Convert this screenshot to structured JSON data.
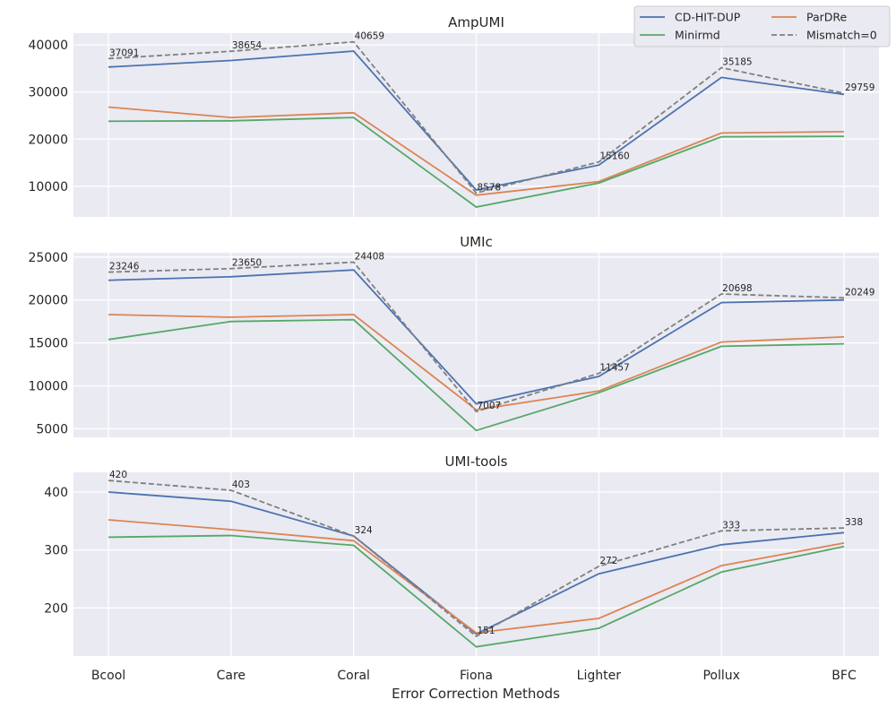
{
  "chart_data": {
    "type": "line",
    "xlabel": "Error Correction Methods",
    "categories": [
      "Bcool",
      "Care",
      "Coral",
      "Fiona",
      "Lighter",
      "Pollux",
      "BFC"
    ],
    "legend": {
      "placement": "top-right",
      "entries": [
        "CD-HIT-DUP",
        "ParDRe",
        "Minirmd",
        "Mismatch=0"
      ]
    },
    "colors": {
      "CD-HIT-DUP": "#4c72b0",
      "ParDRe": "#dd8452",
      "Minirmd": "#55a868",
      "Mismatch=0": "#808080"
    },
    "panels": [
      {
        "title": "AmpUMI",
        "ylim": [
          3500,
          42500
        ],
        "yticks": [
          10000,
          20000,
          30000,
          40000
        ],
        "series": [
          {
            "name": "CD-HIT-DUP",
            "values": [
              35300,
              36700,
              38700,
              9200,
              14500,
              33100,
              29500
            ]
          },
          {
            "name": "ParDRe",
            "values": [
              26800,
              24600,
              25600,
              8100,
              11000,
              21300,
              21600
            ]
          },
          {
            "name": "Minirmd",
            "values": [
              23800,
              23900,
              24600,
              5600,
              10700,
              20500,
              20600
            ]
          },
          {
            "name": "Mismatch=0",
            "dashed": true,
            "values": [
              37091,
              38654,
              40659,
              8578,
              15160,
              35185,
              29759
            ],
            "labels": [
              "37091",
              "38654",
              "40659",
              "8578",
              "15160",
              "35185",
              "29759"
            ]
          }
        ]
      },
      {
        "title": "UMIc",
        "ylim": [
          4000,
          25500
        ],
        "yticks": [
          5000,
          10000,
          15000,
          20000,
          25000
        ],
        "series": [
          {
            "name": "CD-HIT-DUP",
            "values": [
              22300,
              22700,
              23500,
              7900,
              11100,
              19700,
              20000
            ]
          },
          {
            "name": "ParDRe",
            "values": [
              18300,
              18000,
              18300,
              7200,
              9400,
              15100,
              15700
            ]
          },
          {
            "name": "Minirmd",
            "values": [
              15400,
              17500,
              17700,
              4800,
              9200,
              14600,
              14900
            ]
          },
          {
            "name": "Mismatch=0",
            "dashed": true,
            "values": [
              23246,
              23650,
              24408,
              7007,
              11457,
              20698,
              20249
            ],
            "labels": [
              "23246",
              "23650",
              "24408",
              "7007",
              "11457",
              "20698",
              "20249"
            ]
          }
        ]
      },
      {
        "title": "UMI-tools",
        "ylim": [
          117,
          434
        ],
        "yticks": [
          200,
          300,
          400
        ],
        "series": [
          {
            "name": "CD-HIT-DUP",
            "values": [
              400,
              384,
              324,
              155,
              259,
              309,
              330
            ]
          },
          {
            "name": "ParDRe",
            "values": [
              352,
              335,
              316,
              157,
              182,
              273,
              312
            ]
          },
          {
            "name": "Minirmd",
            "values": [
              322,
              325,
              308,
              133,
              165,
              262,
              306
            ]
          },
          {
            "name": "Mismatch=0",
            "dashed": true,
            "values": [
              420,
              403,
              324,
              151,
              272,
              333,
              338
            ],
            "labels": [
              "420",
              "403",
              "324",
              "151",
              "272",
              "333",
              "338"
            ]
          }
        ]
      }
    ]
  }
}
